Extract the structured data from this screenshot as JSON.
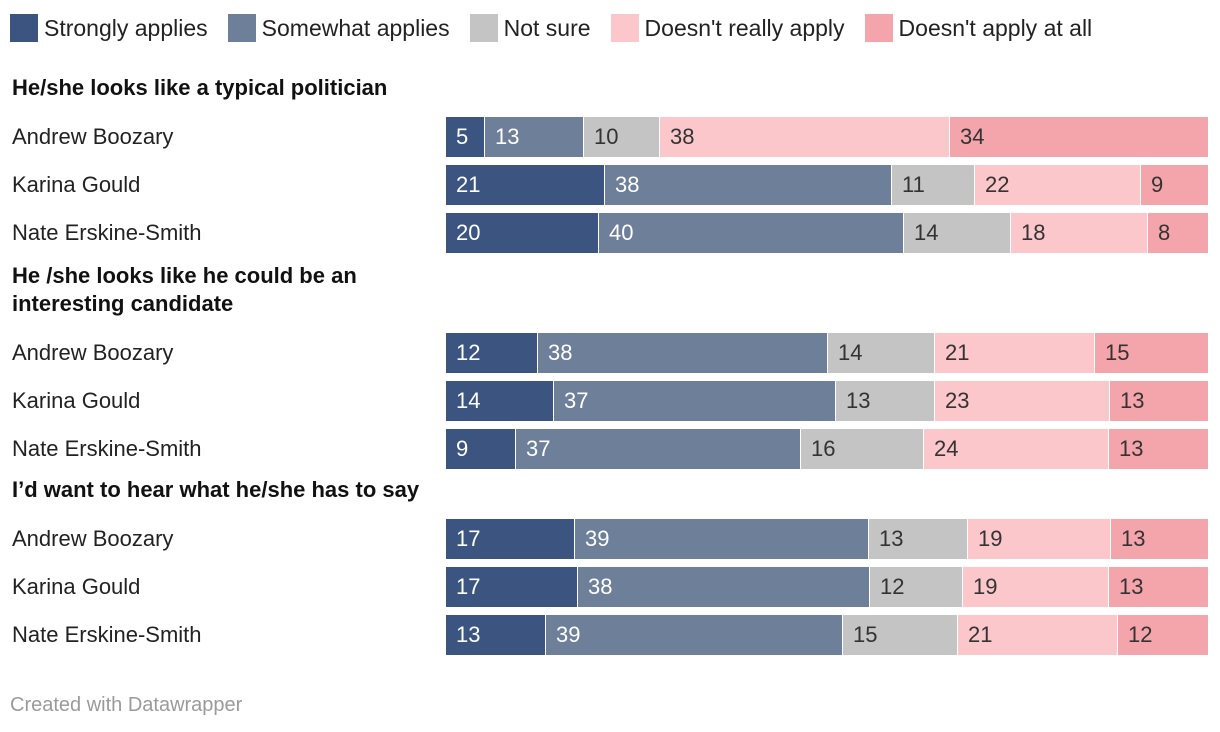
{
  "chart_data": {
    "type": "bar",
    "orientation": "horizontal",
    "stacked": true,
    "legend_position": "top-left",
    "grid": false,
    "xlim": [
      0,
      100
    ],
    "series": [
      {
        "name": "Strongly applies",
        "color": "#3b5580",
        "text_color": "#ffffff"
      },
      {
        "name": "Somewhat applies",
        "color": "#6e7f99",
        "text_color": "#ffffff"
      },
      {
        "name": "Not sure",
        "color": "#c4c4c4",
        "text_color": "#333333"
      },
      {
        "name": "Doesn't really apply",
        "color": "#fbc7ca",
        "text_color": "#333333"
      },
      {
        "name": "Doesn't apply at all",
        "color": "#f4a5ab",
        "text_color": "#333333"
      }
    ],
    "groups": [
      {
        "title": "He/she looks like a typical politician",
        "rows": [
          {
            "label": "Andrew Boozary",
            "values": [
              5,
              13,
              10,
              38,
              34
            ]
          },
          {
            "label": "Karina Gould",
            "values": [
              21,
              38,
              11,
              22,
              9
            ]
          },
          {
            "label": "Nate Erskine-Smith",
            "values": [
              20,
              40,
              14,
              18,
              8
            ]
          }
        ]
      },
      {
        "title": "He /she looks like he could be an\ninteresting candidate",
        "rows": [
          {
            "label": "Andrew Boozary",
            "values": [
              12,
              38,
              14,
              21,
              15
            ]
          },
          {
            "label": "Karina Gould",
            "values": [
              14,
              37,
              13,
              23,
              13
            ]
          },
          {
            "label": "Nate Erskine-Smith",
            "values": [
              9,
              37,
              16,
              24,
              13
            ]
          }
        ]
      },
      {
        "title": "I’d want to hear what he/she has to say",
        "rows": [
          {
            "label": "Andrew Boozary",
            "values": [
              17,
              39,
              13,
              19,
              13
            ]
          },
          {
            "label": "Karina Gould",
            "values": [
              17,
              38,
              12,
              19,
              13
            ]
          },
          {
            "label": "Nate Erskine-Smith",
            "values": [
              13,
              39,
              15,
              21,
              12
            ]
          }
        ]
      }
    ]
  },
  "footer": "Created with Datawrapper"
}
